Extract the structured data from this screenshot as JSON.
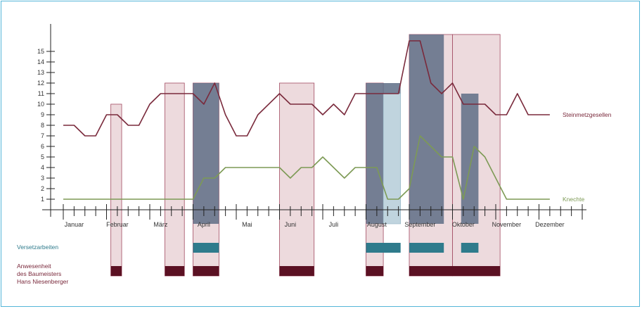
{
  "colors": {
    "border": "#55b6d8",
    "steinmetz": "#7a2a3c",
    "knechte": "#7d9a55",
    "presence_fill": "#e7cdd1",
    "presence_stroke": "#a24b62",
    "presence_bar": "#5b1123",
    "work_fill": "#5e6d86",
    "work_bar": "#2f7b8c",
    "work_light": "#c9dde6",
    "axis": "#222222"
  },
  "chart_data": {
    "type": "line",
    "ylim": [
      0,
      16
    ],
    "yticks": [
      1,
      2,
      3,
      4,
      5,
      6,
      7,
      8,
      9,
      10,
      11,
      12,
      13,
      14,
      15
    ],
    "xlim": [
      0,
      12
    ],
    "months": [
      "Januar",
      "Februar",
      "März",
      "April",
      "Mai",
      "Juni",
      "Juli",
      "August",
      "September",
      "Oktober",
      "November",
      "Dezember"
    ],
    "minor_ticks_per_month": 4,
    "series": [
      {
        "name": "Steinmetzgesellen",
        "color_key": "steinmetz",
        "points": [
          [
            0.0,
            8
          ],
          [
            0.25,
            8
          ],
          [
            0.5,
            7
          ],
          [
            0.75,
            7
          ],
          [
            1.0,
            9
          ],
          [
            1.25,
            9
          ],
          [
            1.5,
            8
          ],
          [
            1.75,
            8
          ],
          [
            2.0,
            10
          ],
          [
            2.25,
            11
          ],
          [
            2.5,
            11
          ],
          [
            3.0,
            11
          ],
          [
            3.25,
            10
          ],
          [
            3.5,
            12
          ],
          [
            3.75,
            9
          ],
          [
            4.0,
            7
          ],
          [
            4.25,
            7
          ],
          [
            4.5,
            9
          ],
          [
            5.0,
            11
          ],
          [
            5.25,
            10
          ],
          [
            5.5,
            10
          ],
          [
            5.75,
            10
          ],
          [
            6.0,
            9
          ],
          [
            6.25,
            10
          ],
          [
            6.5,
            9
          ],
          [
            6.75,
            11
          ],
          [
            7.0,
            11
          ],
          [
            7.25,
            11
          ],
          [
            7.5,
            11
          ],
          [
            7.75,
            11
          ],
          [
            8.0,
            16
          ],
          [
            8.25,
            16
          ],
          [
            8.5,
            12
          ],
          [
            8.75,
            11
          ],
          [
            9.0,
            12
          ],
          [
            9.25,
            10
          ],
          [
            9.5,
            10
          ],
          [
            9.75,
            10
          ],
          [
            10.0,
            9
          ],
          [
            10.25,
            9
          ],
          [
            10.5,
            11
          ],
          [
            10.75,
            9
          ],
          [
            11.25,
            9
          ]
        ]
      },
      {
        "name": "Knechte",
        "color_key": "knechte",
        "points": [
          [
            0.0,
            1
          ],
          [
            3.0,
            1
          ],
          [
            3.25,
            3
          ],
          [
            3.5,
            3
          ],
          [
            3.75,
            4
          ],
          [
            5.0,
            4
          ],
          [
            5.25,
            3
          ],
          [
            5.5,
            4
          ],
          [
            5.75,
            4
          ],
          [
            6.0,
            5
          ],
          [
            6.25,
            4
          ],
          [
            6.5,
            3
          ],
          [
            6.75,
            4
          ],
          [
            7.0,
            4
          ],
          [
            7.25,
            4
          ],
          [
            7.5,
            1
          ],
          [
            7.75,
            1
          ],
          [
            8.0,
            2
          ],
          [
            8.25,
            7
          ],
          [
            8.5,
            6
          ],
          [
            8.75,
            5
          ],
          [
            9.0,
            5
          ],
          [
            9.25,
            1
          ],
          [
            9.5,
            6
          ],
          [
            9.75,
            5
          ],
          [
            10.25,
            1
          ],
          [
            11.25,
            1
          ]
        ]
      }
    ],
    "presence_periods": [
      [
        1.1,
        1.35
      ],
      [
        2.35,
        2.8
      ],
      [
        3.0,
        3.6
      ],
      [
        5.0,
        5.8
      ],
      [
        7.0,
        7.4
      ],
      [
        8.0,
        9.0
      ],
      [
        9.0,
        10.1
      ]
    ],
    "work_periods": [
      [
        3.0,
        3.6
      ],
      [
        7.0,
        7.8
      ],
      [
        8.0,
        8.8
      ],
      [
        9.2,
        9.6
      ]
    ],
    "labels": {
      "steinmetz": "Steinmetzgesellen",
      "knechte": "Knechte",
      "versetzarbeiten": "Versetzarbeiten",
      "anwesenheit": [
        "Anwesenheit",
        "des Baumeisters",
        "Hans Niesenberger"
      ]
    }
  }
}
